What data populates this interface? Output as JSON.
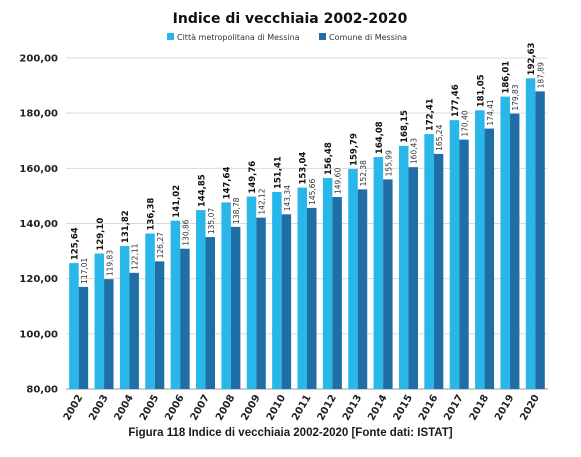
{
  "chart_data": {
    "type": "bar",
    "title": "Indice di vecchiaia 2002-2020",
    "categories": [
      "2002",
      "2003",
      "2004",
      "2005",
      "2006",
      "2007",
      "2008",
      "2009",
      "2010",
      "2011",
      "2012",
      "2013",
      "2014",
      "2015",
      "2016",
      "2017",
      "2018",
      "2019",
      "2020"
    ],
    "series": [
      {
        "name": "Città metropolitana di Messina",
        "color": "#29b6e8",
        "values": [
          125.64,
          129.1,
          131.82,
          136.38,
          141.02,
          144.85,
          147.64,
          149.76,
          151.41,
          153.04,
          156.48,
          159.79,
          164.08,
          168.15,
          172.41,
          177.46,
          181.05,
          186.01,
          192.63
        ],
        "labels": [
          "125,64",
          "129,10",
          "131,82",
          "136,38",
          "141,02",
          "144,85",
          "147,64",
          "149,76",
          "151,41",
          "153,04",
          "156,48",
          "159,79",
          "164,08",
          "168,15",
          "172,41",
          "177,46",
          "181,05",
          "186,01",
          "192,63"
        ]
      },
      {
        "name": "Comune di Messina",
        "color": "#1f6fa6",
        "values": [
          117.01,
          119.83,
          122.11,
          126.27,
          130.86,
          135.07,
          138.78,
          142.12,
          143.34,
          145.66,
          149.6,
          152.38,
          155.99,
          160.43,
          165.24,
          170.4,
          174.41,
          179.83,
          187.89
        ],
        "labels": [
          "117,01",
          "119,83",
          "122,11",
          "126,27",
          "130,86",
          "135,07",
          "138,78",
          "142,12",
          "143,34",
          "145,66",
          "149,60",
          "152,38",
          "155,99",
          "160,43",
          "165,24",
          "170,40",
          "174,41",
          "179,83",
          "187,89"
        ]
      }
    ],
    "ylim": [
      80,
      200
    ],
    "yticks": [
      80,
      100,
      120,
      140,
      160,
      180,
      200
    ],
    "ytick_labels": [
      "80,00",
      "100,00",
      "120,00",
      "140,00",
      "160,00",
      "180,00",
      "200,00"
    ],
    "grid": true,
    "legend": "top-center"
  },
  "caption": "Figura 118 Indice di vecchiaia 2002-2020 [Fonte dati: ISTAT]"
}
